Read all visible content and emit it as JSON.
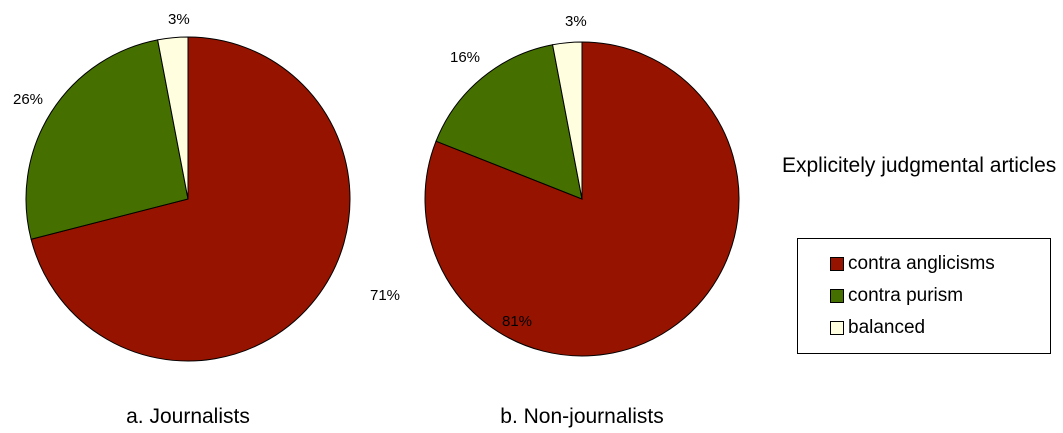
{
  "title": "Explicitely judgmental articles",
  "legend": [
    {
      "label": "contra anglicisms",
      "color": "#961300"
    },
    {
      "label": "contra purism",
      "color": "#457000"
    },
    {
      "label": "balanced",
      "color": "#ffffe0"
    }
  ],
  "chart_data": [
    {
      "type": "pie",
      "caption": "a. Journalists",
      "categories": [
        "contra anglicisms",
        "contra purism",
        "balanced"
      ],
      "values": [
        71,
        26,
        3
      ],
      "labels": [
        "71%",
        "26%",
        "3%"
      ],
      "colors": [
        "#961300",
        "#457000",
        "#ffffe0"
      ]
    },
    {
      "type": "pie",
      "caption": "b. Non-journalists",
      "categories": [
        "contra anglicisms",
        "contra purism",
        "balanced"
      ],
      "values": [
        81,
        16,
        3
      ],
      "labels": [
        "81%",
        "16%",
        "3%"
      ],
      "colors": [
        "#961300",
        "#457000",
        "#ffffe0"
      ]
    }
  ]
}
